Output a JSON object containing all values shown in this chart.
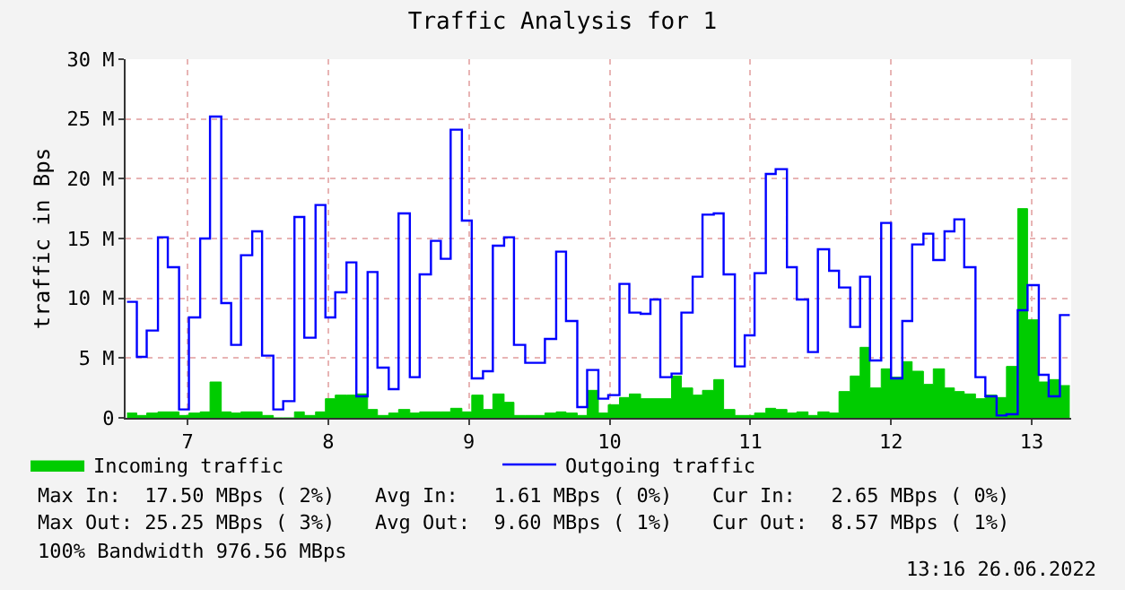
{
  "chart_data": {
    "type": "step",
    "title": "Traffic Analysis for 1",
    "ylabel": "traffic in Bps",
    "x": [
      6.57,
      6.64,
      6.71,
      6.79,
      6.86,
      6.94,
      7.01,
      7.09,
      7.16,
      7.24,
      7.31,
      7.38,
      7.46,
      7.53,
      7.61,
      7.68,
      7.76,
      7.83,
      7.91,
      7.98,
      8.05,
      8.13,
      8.2,
      8.28,
      8.35,
      8.43,
      8.5,
      8.58,
      8.65,
      8.73,
      8.8,
      8.87,
      8.95,
      9.02,
      9.1,
      9.17,
      9.25,
      9.32,
      9.4,
      9.47,
      9.54,
      9.62,
      9.69,
      9.77,
      9.84,
      9.92,
      9.99,
      10.07,
      10.14,
      10.22,
      10.29,
      10.36,
      10.44,
      10.51,
      10.59,
      10.66,
      10.74,
      10.81,
      10.89,
      10.96,
      11.03,
      11.11,
      11.18,
      11.26,
      11.33,
      11.41,
      11.48,
      11.56,
      11.63,
      11.71,
      11.78,
      11.85,
      11.93,
      12.0,
      12.08,
      12.15,
      12.23,
      12.3,
      12.38,
      12.45,
      12.52,
      12.6,
      12.67,
      12.75,
      12.82,
      12.9,
      12.97,
      13.05,
      13.12,
      13.2,
      13.27
    ],
    "series": [
      {
        "name": "Incoming traffic",
        "type": "area",
        "color": "#00cc00",
        "values": [
          0.4,
          0.2,
          0.4,
          0.5,
          0.5,
          0.2,
          0.4,
          0.5,
          3.0,
          0.5,
          0.4,
          0.5,
          0.5,
          0.2,
          0,
          0,
          0.5,
          0.2,
          0.5,
          1.6,
          1.9,
          1.9,
          2.0,
          0.7,
          0.2,
          0.4,
          0.7,
          0.4,
          0.5,
          0.5,
          0.5,
          0.8,
          0.5,
          1.9,
          0.7,
          2.0,
          1.3,
          0.2,
          0.2,
          0.2,
          0.4,
          0.5,
          0.4,
          0.2,
          2.3,
          0.4,
          1.1,
          1.7,
          2.0,
          1.6,
          1.6,
          1.6,
          3.5,
          2.5,
          1.9,
          2.3,
          3.2,
          0.7,
          0.2,
          0.2,
          0.4,
          0.8,
          0.7,
          0.4,
          0.5,
          0.2,
          0.5,
          0.4,
          2.2,
          3.5,
          5.9,
          2.5,
          4.1,
          3.4,
          4.7,
          3.9,
          2.8,
          4.1,
          2.5,
          2.2,
          2.0,
          1.6,
          1.9,
          1.7,
          4.3,
          17.5,
          8.2,
          3.0,
          3.2,
          2.7,
          2.7
        ]
      },
      {
        "name": "Outgoing traffic",
        "color": "#0000ff",
        "values": [
          9.7,
          5.1,
          7.3,
          15.1,
          12.6,
          0.7,
          8.4,
          15.0,
          25.2,
          9.6,
          6.1,
          13.6,
          15.6,
          5.2,
          0.7,
          1.4,
          16.8,
          6.7,
          17.8,
          8.4,
          10.5,
          13.0,
          1.8,
          12.2,
          4.2,
          2.4,
          17.1,
          3.4,
          12.0,
          14.8,
          13.3,
          24.1,
          16.5,
          3.3,
          3.9,
          14.4,
          15.1,
          6.1,
          4.6,
          4.6,
          6.6,
          13.9,
          8.1,
          0.9,
          4.0,
          1.6,
          1.9,
          11.2,
          8.8,
          8.7,
          9.9,
          3.4,
          3.7,
          8.8,
          11.8,
          17.0,
          17.1,
          12.0,
          4.3,
          6.9,
          12.1,
          20.4,
          20.8,
          12.6,
          9.9,
          5.5,
          14.1,
          12.3,
          10.9,
          7.6,
          11.8,
          4.8,
          16.3,
          3.3,
          8.1,
          14.5,
          15.4,
          13.2,
          15.6,
          16.6,
          12.6,
          3.4,
          1.8,
          0.2,
          0.3,
          9.0,
          11.1,
          3.6,
          1.8,
          8.6,
          8.6
        ]
      }
    ],
    "xlim": [
      6.56,
      13.28
    ],
    "xticks": [
      7,
      8,
      9,
      10,
      11,
      12,
      13
    ],
    "ylim": [
      0,
      30
    ],
    "yticks": [
      0,
      {
        "value": 5,
        "label": "5 M"
      },
      {
        "value": 10,
        "label": "10 M"
      },
      {
        "value": 15,
        "label": "15 M"
      },
      {
        "value": 20,
        "label": "20 M"
      },
      {
        "value": 25,
        "label": "25 M"
      },
      {
        "value": 30,
        "label": "30 M"
      }
    ],
    "grid": true,
    "legend": "bottom left",
    "annotations": [
      "Max In:  17.50 MBps ( 2%)",
      "Avg In:   1.61 MBps ( 0%)",
      "Cur In:   2.65 MBps ( 0%)",
      "Max Out: 25.25 MBps ( 3%)",
      "Avg Out:  9.60 MBps ( 1%)",
      "Cur Out:  8.57 MBps ( 1%)",
      "100% Bandwidth 976.56 MBps",
      "13:16 26.06.2022"
    ]
  }
}
